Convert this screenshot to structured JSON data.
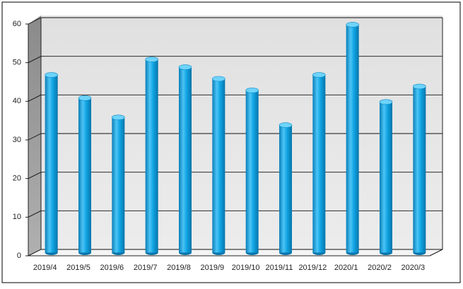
{
  "chart_data": {
    "type": "bar",
    "categories": [
      "2019/4",
      "2019/5",
      "2019/6",
      "2019/7",
      "2019/8",
      "2019/9",
      "2019/10",
      "2019/11",
      "2019/12",
      "2020/1",
      "2020/2",
      "2020/3"
    ],
    "values": [
      46,
      40,
      35,
      50,
      48,
      45,
      42,
      33,
      46,
      59,
      39,
      43
    ],
    "color": "#0aa0e0",
    "ylim": [
      0,
      60
    ],
    "yticks": [
      0,
      10,
      20,
      30,
      40,
      50,
      60
    ],
    "grid": true
  }
}
